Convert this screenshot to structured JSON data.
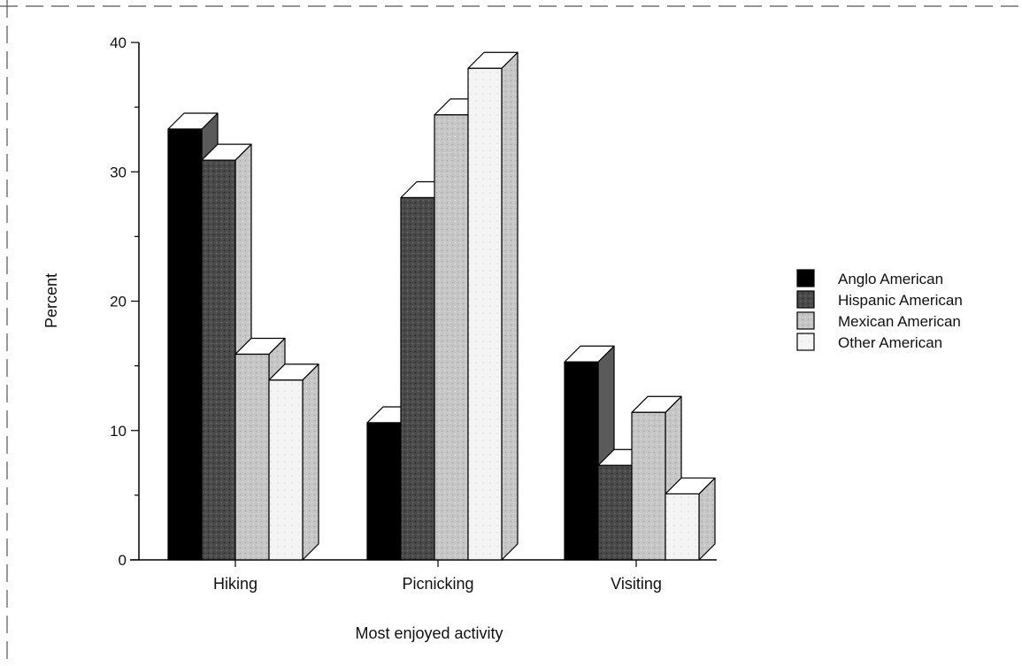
{
  "chart_data": {
    "type": "bar",
    "style": "3d-clustered",
    "categories": [
      "Hiking",
      "Picnicking",
      "Visiting"
    ],
    "series": [
      {
        "name": "Anglo American",
        "values": [
          33.3,
          10.6,
          15.3
        ],
        "color": "#000000"
      },
      {
        "name": "Hispanic American",
        "values": [
          30.9,
          28.0,
          7.3
        ],
        "color": "#4a4a4a"
      },
      {
        "name": "Mexican American",
        "values": [
          15.9,
          34.4,
          11.4
        ],
        "color": "#c4c4c4"
      },
      {
        "name": "Other American",
        "values": [
          13.9,
          38.0,
          5.1
        ],
        "color": "#f4f4f4"
      }
    ],
    "title": "",
    "xlabel": "Most enjoyed activity",
    "ylabel": "Percent",
    "ylim": [
      0,
      40
    ],
    "yticks": [
      0,
      10,
      20,
      30,
      40
    ],
    "grid": false,
    "legend_position": "right"
  }
}
